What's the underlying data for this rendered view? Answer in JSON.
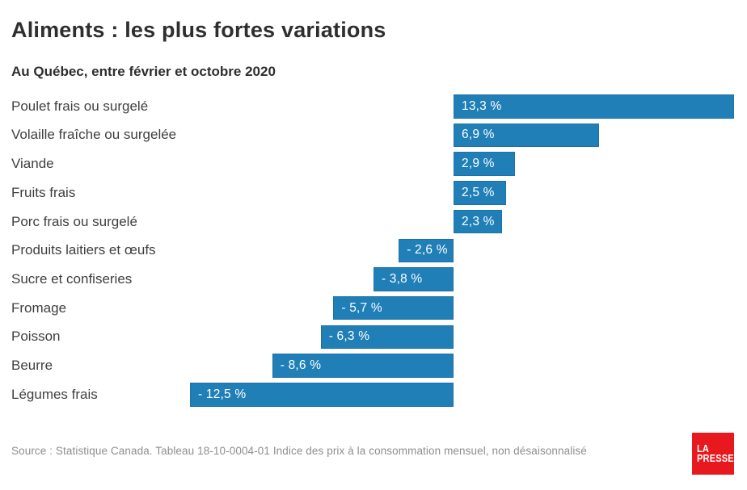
{
  "header": {
    "title": "Aliments : les plus fortes variations",
    "subtitle": "Au Québec, entre février et octobre 2020"
  },
  "chart_data": {
    "type": "bar",
    "orientation": "horizontal",
    "title": "Aliments : les plus fortes variations",
    "subtitle": "Au Québec, entre février et octobre 2020",
    "categories": [
      "Poulet frais ou surgelé",
      "Volaille fraîche ou surgelée",
      "Viande",
      "Fruits frais",
      "Porc frais ou surgelé",
      "Produits laitiers et œufs",
      "Sucre et confiseries",
      "Fromage",
      "Poisson",
      "Beurre",
      "Légumes frais"
    ],
    "values": [
      13.3,
      6.9,
      2.9,
      2.5,
      2.3,
      -2.6,
      -3.8,
      -5.7,
      -6.3,
      -8.6,
      -12.5
    ],
    "value_labels": [
      "13,3 %",
      "6,9 %",
      "2,9 %",
      "2,5 %",
      "2,3 %",
      "- 2,6 %",
      "- 3,8 %",
      "- 5,7 %",
      "- 6,3 %",
      "- 8,6 %",
      "- 12,5 %"
    ],
    "bar_color": "#217FB8",
    "value_label_color": "#FFFFFF",
    "xlim": [
      -13.3,
      13.9
    ],
    "grid": false,
    "legend": false,
    "ylabel": "",
    "xlabel": ""
  },
  "footer": {
    "source_text": "Source : Statistique Canada. Tableau 18-10-0004-01 Indice des prix à la consommation mensuel, non désaisonnalisé",
    "logo": {
      "line1": "LA",
      "line2": "PRESSE",
      "color": "#E8191E"
    }
  }
}
